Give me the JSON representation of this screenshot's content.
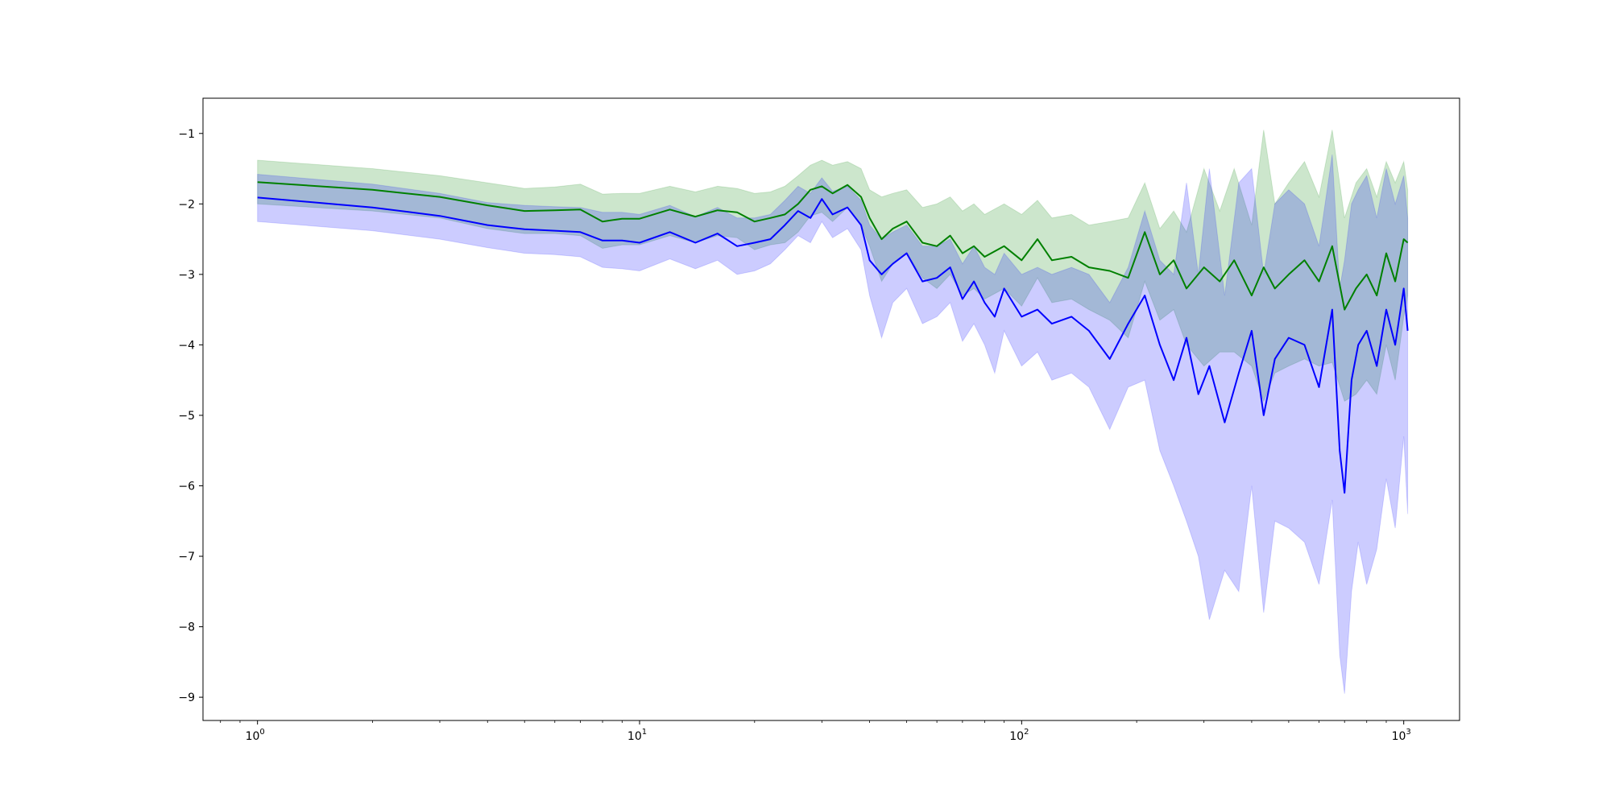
{
  "chart_data": {
    "type": "line",
    "title": "",
    "xlabel": "",
    "ylabel": "",
    "xscale": "log",
    "xlim": [
      0.72,
      1400
    ],
    "ylim": [
      -9.33,
      -0.5
    ],
    "grid": false,
    "legend": "none",
    "x_ticks": [
      {
        "base": "10",
        "exp": "0",
        "value": 1
      },
      {
        "base": "10",
        "exp": "1",
        "value": 10
      },
      {
        "base": "10",
        "exp": "2",
        "value": 100
      },
      {
        "base": "10",
        "exp": "3",
        "value": 1000
      }
    ],
    "y_ticks": [
      {
        "label": "−1",
        "value": -1
      },
      {
        "label": "−2",
        "value": -2
      },
      {
        "label": "−3",
        "value": -3
      },
      {
        "label": "−4",
        "value": -4
      },
      {
        "label": "−5",
        "value": -5
      },
      {
        "label": "−6",
        "value": -6
      },
      {
        "label": "−7",
        "value": -7
      },
      {
        "label": "−8",
        "value": -8
      },
      {
        "label": "−9",
        "value": -9
      }
    ],
    "series": [
      {
        "color": "#008000",
        "band_color": "#008000",
        "band_opacity": 0.2,
        "x": [
          1,
          2,
          3,
          4,
          5,
          6,
          7,
          8,
          9,
          10,
          12,
          14,
          16,
          18,
          20,
          22,
          24,
          26,
          28,
          30,
          32,
          35,
          38,
          40,
          43,
          46,
          50,
          55,
          60,
          65,
          70,
          75,
          80,
          90,
          100,
          110,
          120,
          135,
          150,
          170,
          190,
          210,
          230,
          250,
          270,
          300,
          330,
          360,
          400,
          430,
          460,
          500,
          550,
          600,
          650,
          700,
          750,
          800,
          850,
          900,
          950,
          1000,
          1024
        ],
        "y": [
          -1.69,
          -1.8,
          -1.9,
          -2.02,
          -2.1,
          -2.09,
          -2.08,
          -2.25,
          -2.21,
          -2.21,
          -2.08,
          -2.18,
          -2.09,
          -2.12,
          -2.25,
          -2.2,
          -2.15,
          -2.0,
          -1.8,
          -1.75,
          -1.85,
          -1.73,
          -1.9,
          -2.2,
          -2.5,
          -2.35,
          -2.25,
          -2.55,
          -2.6,
          -2.45,
          -2.7,
          -2.6,
          -2.75,
          -2.6,
          -2.8,
          -2.5,
          -2.8,
          -2.75,
          -2.9,
          -2.95,
          -3.05,
          -2.4,
          -3.0,
          -2.8,
          -3.2,
          -2.9,
          -3.1,
          -2.8,
          -3.3,
          -2.9,
          -3.2,
          -3.0,
          -2.8,
          -3.1,
          -2.6,
          -3.5,
          -3.2,
          -3.0,
          -3.3,
          -2.7,
          -3.1,
          -2.5,
          -2.55
        ],
        "upper": [
          -1.38,
          -1.5,
          -1.6,
          -1.7,
          -1.78,
          -1.76,
          -1.72,
          -1.86,
          -1.85,
          -1.85,
          -1.75,
          -1.83,
          -1.75,
          -1.78,
          -1.85,
          -1.83,
          -1.75,
          -1.6,
          -1.45,
          -1.38,
          -1.45,
          -1.4,
          -1.5,
          -1.8,
          -1.9,
          -1.85,
          -1.8,
          -2.05,
          -2.0,
          -1.9,
          -2.1,
          -2.0,
          -2.15,
          -2.0,
          -2.15,
          -1.95,
          -2.2,
          -2.15,
          -2.3,
          -2.25,
          -2.2,
          -1.7,
          -2.35,
          -2.1,
          -2.4,
          -1.5,
          -2.1,
          -1.5,
          -2.3,
          -0.95,
          -2.0,
          -1.7,
          -1.4,
          -1.9,
          -0.95,
          -2.2,
          -1.7,
          -1.5,
          -1.9,
          -1.4,
          -1.7,
          -1.4,
          -1.8
        ],
        "lower": [
          -2.0,
          -2.1,
          -2.2,
          -2.35,
          -2.42,
          -2.42,
          -2.45,
          -2.63,
          -2.58,
          -2.58,
          -2.45,
          -2.55,
          -2.45,
          -2.48,
          -2.65,
          -2.58,
          -2.55,
          -2.4,
          -2.17,
          -2.12,
          -2.25,
          -2.05,
          -2.3,
          -2.6,
          -3.1,
          -2.85,
          -2.7,
          -3.05,
          -3.2,
          -3.0,
          -3.3,
          -3.2,
          -3.35,
          -3.2,
          -3.45,
          -3.05,
          -3.4,
          -3.35,
          -3.5,
          -3.65,
          -3.9,
          -3.1,
          -3.65,
          -3.5,
          -4.0,
          -4.3,
          -4.1,
          -4.1,
          -4.3,
          -4.8,
          -4.4,
          -4.3,
          -4.2,
          -4.3,
          -4.25,
          -4.8,
          -4.7,
          -4.5,
          -4.7,
          -4.0,
          -4.5,
          -3.6,
          -3.3
        ]
      },
      {
        "color": "#0000ff",
        "band_color": "#0000ff",
        "band_opacity": 0.2,
        "x": [
          1,
          2,
          3,
          4,
          5,
          6,
          7,
          8,
          9,
          10,
          12,
          14,
          16,
          18,
          20,
          22,
          24,
          26,
          28,
          30,
          32,
          35,
          38,
          40,
          43,
          46,
          50,
          55,
          60,
          65,
          70,
          75,
          80,
          85,
          90,
          100,
          110,
          120,
          135,
          150,
          170,
          190,
          210,
          230,
          250,
          270,
          290,
          310,
          340,
          370,
          400,
          430,
          460,
          500,
          550,
          600,
          650,
          680,
          700,
          730,
          760,
          800,
          850,
          900,
          950,
          1000,
          1024
        ],
        "y": [
          -1.91,
          -2.05,
          -2.17,
          -2.3,
          -2.36,
          -2.38,
          -2.4,
          -2.52,
          -2.52,
          -2.55,
          -2.4,
          -2.55,
          -2.42,
          -2.6,
          -2.55,
          -2.5,
          -2.3,
          -2.1,
          -2.2,
          -1.93,
          -2.15,
          -2.05,
          -2.3,
          -2.8,
          -3.0,
          -2.85,
          -2.7,
          -3.1,
          -3.05,
          -2.9,
          -3.35,
          -3.1,
          -3.4,
          -3.6,
          -3.2,
          -3.6,
          -3.5,
          -3.7,
          -3.6,
          -3.8,
          -4.2,
          -3.7,
          -3.3,
          -4.0,
          -4.5,
          -3.9,
          -4.7,
          -4.3,
          -5.1,
          -4.4,
          -3.8,
          -5.0,
          -4.2,
          -3.9,
          -4.0,
          -4.6,
          -3.5,
          -5.5,
          -6.1,
          -4.5,
          -4.0,
          -3.8,
          -4.3,
          -3.5,
          -4.0,
          -3.2,
          -3.8
        ],
        "upper": [
          -1.58,
          -1.72,
          -1.85,
          -1.98,
          -2.02,
          -2.04,
          -2.05,
          -2.12,
          -2.12,
          -2.15,
          -2.02,
          -2.18,
          -2.05,
          -2.2,
          -2.2,
          -2.15,
          -1.95,
          -1.75,
          -1.85,
          -1.63,
          -1.82,
          -1.75,
          -1.95,
          -2.3,
          -2.5,
          -2.4,
          -2.3,
          -2.6,
          -2.6,
          -2.5,
          -2.85,
          -2.6,
          -2.9,
          -3.0,
          -2.7,
          -3.0,
          -2.9,
          -3.0,
          -2.9,
          -3.0,
          -3.4,
          -2.9,
          -2.1,
          -2.8,
          -3.0,
          -1.7,
          -3.0,
          -1.5,
          -3.3,
          -1.7,
          -1.5,
          -3.0,
          -2.0,
          -1.8,
          -2.0,
          -2.6,
          -1.3,
          -3.2,
          -2.8,
          -2.0,
          -1.8,
          -1.6,
          -2.2,
          -1.5,
          -2.0,
          -1.6,
          -2.2
        ],
        "lower": [
          -2.25,
          -2.38,
          -2.5,
          -2.62,
          -2.7,
          -2.72,
          -2.75,
          -2.9,
          -2.92,
          -2.95,
          -2.78,
          -2.92,
          -2.8,
          -3.0,
          -2.95,
          -2.85,
          -2.65,
          -2.45,
          -2.55,
          -2.25,
          -2.48,
          -2.35,
          -2.65,
          -3.3,
          -3.9,
          -3.4,
          -3.2,
          -3.7,
          -3.6,
          -3.4,
          -3.95,
          -3.7,
          -4.0,
          -4.4,
          -3.8,
          -4.3,
          -4.1,
          -4.5,
          -4.4,
          -4.6,
          -5.2,
          -4.6,
          -4.5,
          -5.5,
          -6.0,
          -6.5,
          -7.0,
          -7.9,
          -7.2,
          -7.5,
          -6.0,
          -7.8,
          -6.5,
          -6.6,
          -6.8,
          -7.4,
          -6.2,
          -8.4,
          -8.95,
          -7.5,
          -6.8,
          -7.4,
          -6.9,
          -5.9,
          -6.6,
          -5.3,
          -6.4
        ]
      }
    ]
  }
}
